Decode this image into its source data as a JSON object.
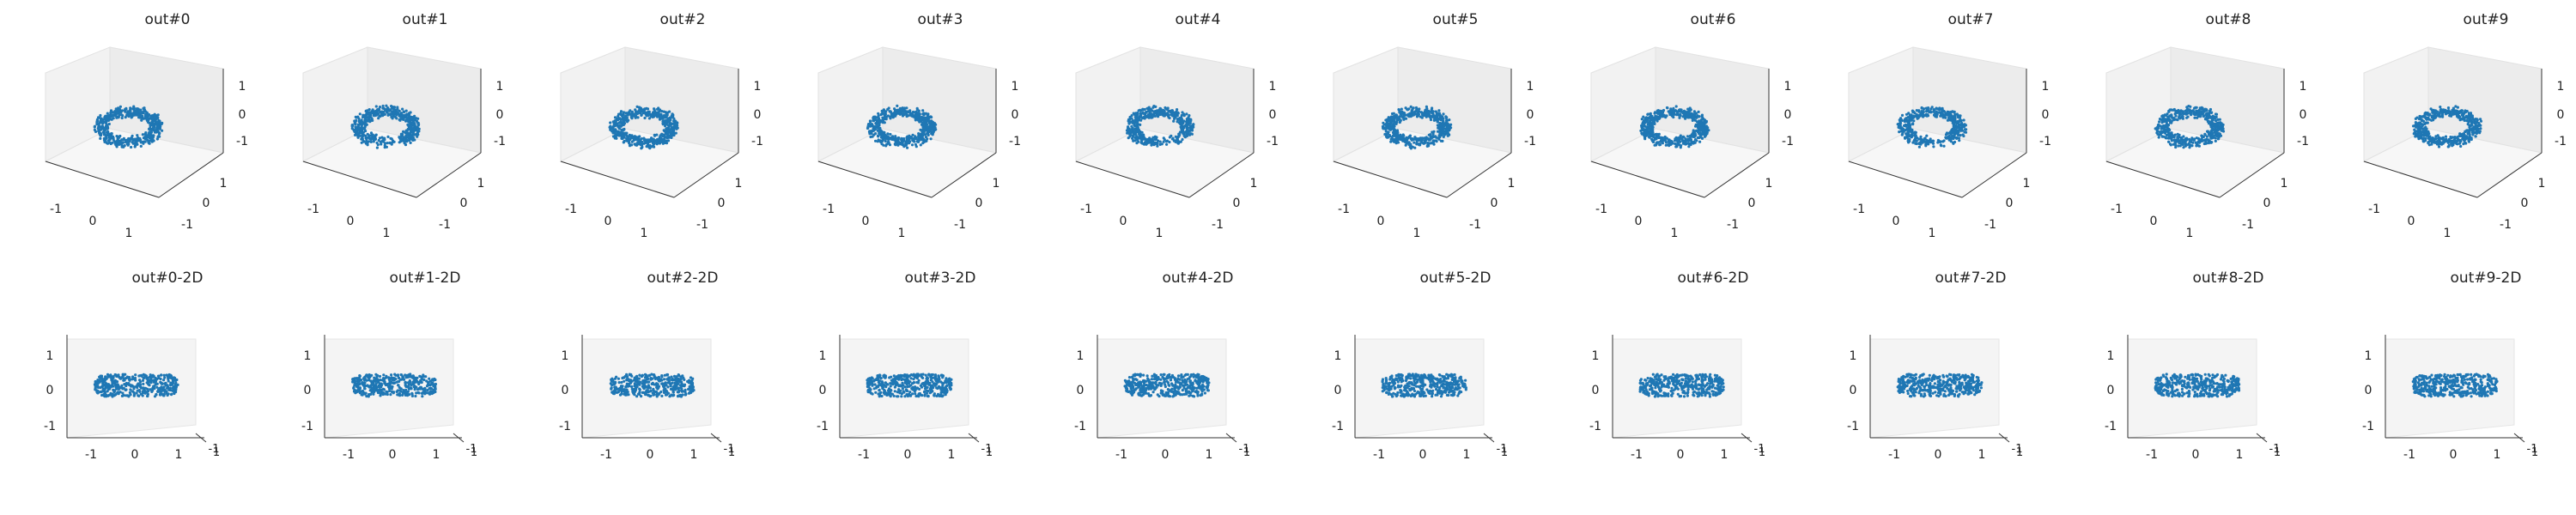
{
  "chart_data": {
    "type": "scatter",
    "description_note_free": true,
    "axis_ticks": [
      "-1",
      "0",
      "1"
    ],
    "panels_3d": [
      {
        "title": "out#0",
        "xlim": [
          -1.5,
          1.5
        ],
        "ylim": [
          -1.5,
          1.5
        ],
        "zlim": [
          -1.5,
          1.5
        ],
        "shape": "ring",
        "color": "#1f77b4"
      },
      {
        "title": "out#1",
        "xlim": [
          -1.5,
          1.5
        ],
        "ylim": [
          -1.5,
          1.5
        ],
        "zlim": [
          -1.5,
          1.5
        ],
        "shape": "ring",
        "color": "#1f77b4"
      },
      {
        "title": "out#2",
        "xlim": [
          -1.5,
          1.5
        ],
        "ylim": [
          -1.5,
          1.5
        ],
        "zlim": [
          -1.5,
          1.5
        ],
        "shape": "ring",
        "color": "#1f77b4"
      },
      {
        "title": "out#3",
        "xlim": [
          -1.5,
          1.5
        ],
        "ylim": [
          -1.5,
          1.5
        ],
        "zlim": [
          -1.5,
          1.5
        ],
        "shape": "ring",
        "color": "#1f77b4"
      },
      {
        "title": "out#4",
        "xlim": [
          -1.5,
          1.5
        ],
        "ylim": [
          -1.5,
          1.5
        ],
        "zlim": [
          -1.5,
          1.5
        ],
        "shape": "ring",
        "color": "#1f77b4"
      },
      {
        "title": "out#5",
        "xlim": [
          -1.5,
          1.5
        ],
        "ylim": [
          -1.5,
          1.5
        ],
        "zlim": [
          -1.5,
          1.5
        ],
        "shape": "ring",
        "color": "#1f77b4"
      },
      {
        "title": "out#6",
        "xlim": [
          -1.5,
          1.5
        ],
        "ylim": [
          -1.5,
          1.5
        ],
        "zlim": [
          -1.5,
          1.5
        ],
        "shape": "ring",
        "color": "#1f77b4"
      },
      {
        "title": "out#7",
        "xlim": [
          -1.5,
          1.5
        ],
        "ylim": [
          -1.5,
          1.5
        ],
        "zlim": [
          -1.5,
          1.5
        ],
        "shape": "ring",
        "color": "#1f77b4"
      },
      {
        "title": "out#8",
        "xlim": [
          -1.5,
          1.5
        ],
        "ylim": [
          -1.5,
          1.5
        ],
        "zlim": [
          -1.5,
          1.5
        ],
        "shape": "ring",
        "color": "#1f77b4"
      },
      {
        "title": "out#9",
        "xlim": [
          -1.5,
          1.5
        ],
        "ylim": [
          -1.5,
          1.5
        ],
        "zlim": [
          -1.5,
          1.5
        ],
        "shape": "ring",
        "color": "#1f77b4"
      }
    ],
    "panels_2d": [
      {
        "title": "out#0-2D",
        "xlim": [
          -1.5,
          1.5
        ],
        "ylim": [
          -1.5,
          1.5
        ],
        "shape": "band",
        "color": "#1f77b4"
      },
      {
        "title": "out#1-2D",
        "xlim": [
          -1.5,
          1.5
        ],
        "ylim": [
          -1.5,
          1.5
        ],
        "shape": "band",
        "color": "#1f77b4"
      },
      {
        "title": "out#2-2D",
        "xlim": [
          -1.5,
          1.5
        ],
        "ylim": [
          -1.5,
          1.5
        ],
        "shape": "band",
        "color": "#1f77b4"
      },
      {
        "title": "out#3-2D",
        "xlim": [
          -1.5,
          1.5
        ],
        "ylim": [
          -1.5,
          1.5
        ],
        "shape": "band",
        "color": "#1f77b4"
      },
      {
        "title": "out#4-2D",
        "xlim": [
          -1.5,
          1.5
        ],
        "ylim": [
          -1.5,
          1.5
        ],
        "shape": "band",
        "color": "#1f77b4"
      },
      {
        "title": "out#5-2D",
        "xlim": [
          -1.5,
          1.5
        ],
        "ylim": [
          -1.5,
          1.5
        ],
        "shape": "band",
        "color": "#1f77b4"
      },
      {
        "title": "out#6-2D",
        "xlim": [
          -1.5,
          1.5
        ],
        "ylim": [
          -1.5,
          1.5
        ],
        "shape": "band",
        "color": "#1f77b4"
      },
      {
        "title": "out#7-2D",
        "xlim": [
          -1.5,
          1.5
        ],
        "ylim": [
          -1.5,
          1.5
        ],
        "shape": "band",
        "color": "#1f77b4"
      },
      {
        "title": "out#8-2D",
        "xlim": [
          -1.5,
          1.5
        ],
        "ylim": [
          -1.5,
          1.5
        ],
        "shape": "band",
        "color": "#1f77b4"
      },
      {
        "title": "out#9-2D",
        "xlim": [
          -1.5,
          1.5
        ],
        "ylim": [
          -1.5,
          1.5
        ],
        "shape": "band",
        "color": "#1f77b4"
      }
    ]
  }
}
